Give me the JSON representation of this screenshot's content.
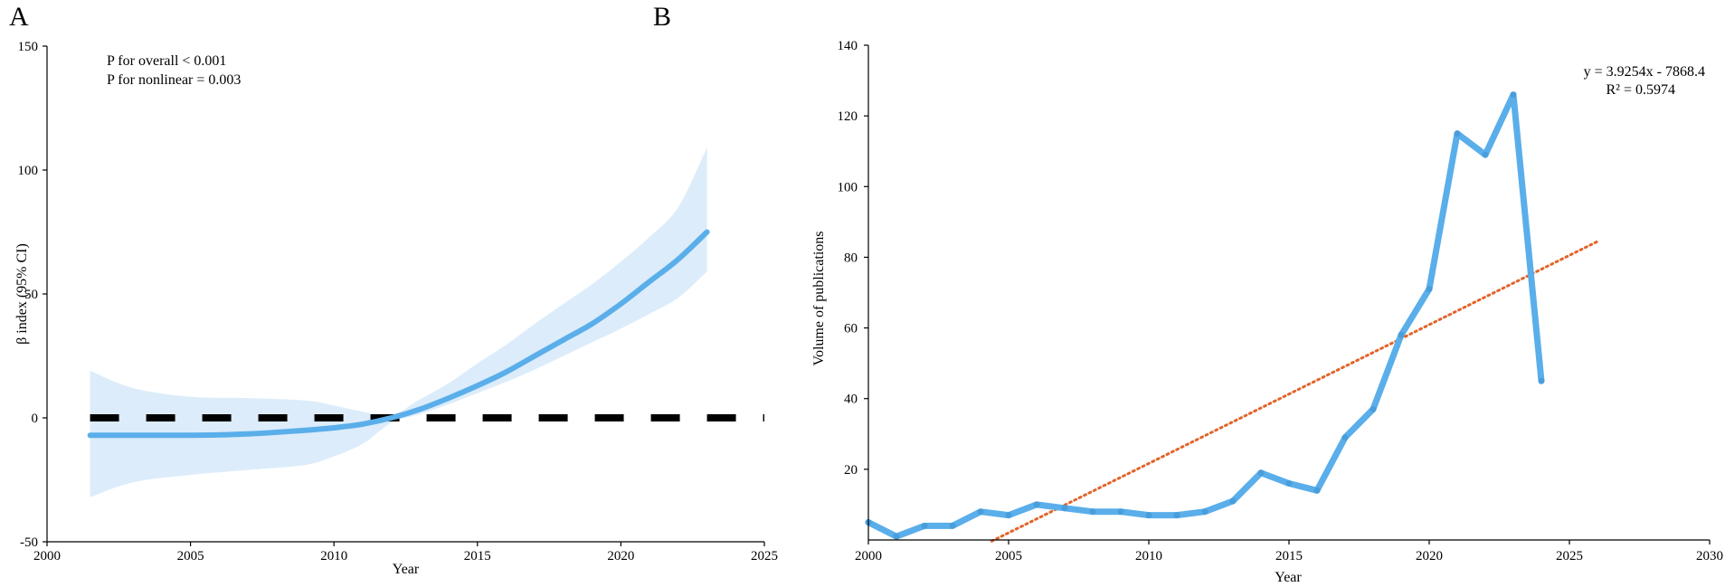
{
  "panels": {
    "a": {
      "letter": "A"
    },
    "b": {
      "letter": "B"
    }
  },
  "chart_data": [
    {
      "id": "A",
      "type": "line",
      "title": "",
      "xlabel": "Year",
      "ylabel": "β index  (95% CI)",
      "xlim": [
        2000,
        2025
      ],
      "ylim": [
        -50,
        150
      ],
      "xticks": [
        2000,
        2005,
        2010,
        2015,
        2020,
        2025
      ],
      "yticks": [
        -50,
        0,
        50,
        100,
        150
      ],
      "grid": false,
      "annotations": [
        "P for overall < 0.001",
        "P for nonlinear = 0.003"
      ],
      "series": [
        {
          "name": "β index",
          "x": [
            2001.5,
            2003,
            2005,
            2007,
            2009,
            2010,
            2011,
            2012,
            2013,
            2014,
            2015,
            2016,
            2017,
            2018,
            2019,
            2020,
            2021,
            2022,
            2023
          ],
          "y": [
            -7,
            -7,
            -7,
            -6.5,
            -5,
            -4,
            -2.5,
            0,
            3.5,
            8,
            13,
            18.5,
            25,
            31.5,
            38,
            46,
            55,
            64,
            75
          ],
          "lower": [
            -32,
            -26,
            -23,
            -21,
            -19,
            -15.5,
            -10.5,
            -2,
            1.5,
            5.5,
            10,
            14.5,
            19.5,
            25,
            30.5,
            36,
            42,
            48.5,
            59
          ],
          "upper": [
            19,
            12,
            8.5,
            8,
            7,
            5,
            2.5,
            1,
            7.5,
            14,
            22,
            29.5,
            38,
            46,
            54,
            63,
            73,
            85,
            109
          ]
        }
      ],
      "reference_line": {
        "y": 0,
        "style": "dashed"
      }
    },
    {
      "id": "B",
      "type": "line",
      "title": "",
      "xlabel": "Year",
      "ylabel": "Volume of publications",
      "xlim": [
        2000,
        2030
      ],
      "ylim": [
        0,
        140
      ],
      "xticks": [
        2000,
        2005,
        2010,
        2015,
        2020,
        2025,
        2030
      ],
      "yticks": [
        20,
        40,
        60,
        80,
        100,
        120,
        140
      ],
      "grid": false,
      "annotations": [
        "y = 3.9254x - 7868.4",
        "R² = 0.5974"
      ],
      "series": [
        {
          "name": "Volume of publications",
          "x": [
            2000,
            2001,
            2002,
            2003,
            2004,
            2005,
            2006,
            2007,
            2008,
            2009,
            2010,
            2011,
            2012,
            2013,
            2014,
            2015,
            2016,
            2017,
            2018,
            2019,
            2020,
            2021,
            2022,
            2023,
            2024
          ],
          "y": [
            5,
            1,
            4,
            4,
            8,
            7,
            10,
            9,
            8,
            8,
            7,
            7,
            8,
            11,
            19,
            16,
            14,
            29,
            37,
            58,
            71,
            115,
            109,
            126,
            45
          ]
        }
      ],
      "trendline": {
        "slope": 3.9254,
        "intercept": -7868.4,
        "x_range": [
          2004.4,
          2026
        ]
      }
    }
  ]
}
